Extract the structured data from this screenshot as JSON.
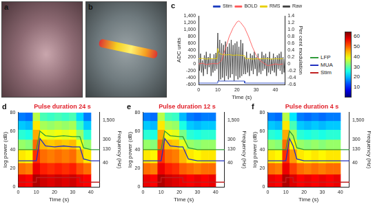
{
  "panels": [
    {
      "label": "a",
      "type": "image"
    },
    {
      "label": "b",
      "type": "image"
    }
  ],
  "colorbar": {
    "range": [
      0,
      65
    ],
    "ticks": [
      10,
      20,
      30,
      40,
      50,
      60
    ]
  },
  "chart_data": [
    {
      "label": "c",
      "type": "line",
      "x_label": "Time (s)",
      "y_label": "ADC units",
      "y2_label": "Per cent modulation",
      "xlim": [
        0,
        45
      ],
      "xticks": [
        0,
        10,
        20,
        30,
        40
      ],
      "ylim": [
        -600,
        1400
      ],
      "yticks": [
        -600,
        -400,
        -200,
        0,
        200,
        400,
        600,
        800,
        {
          "value": 1000,
          "label": "1,000"
        },
        {
          "value": 1200,
          "label": "1,200"
        },
        {
          "value": 1400,
          "label": "1,400"
        }
      ],
      "y2lim": [
        -0.6,
        1.4
      ],
      "y2ticks": [
        -0.6,
        -0.4,
        -0.2,
        0,
        0.2,
        0.4,
        0.6,
        0.8,
        {
          "value": 1,
          "label": "1.0"
        },
        1.2,
        1.4
      ],
      "grid": false,
      "legend": "top",
      "series": [
        {
          "name": "Raw",
          "color": "#444444",
          "x": [
            0,
            0.5,
            1,
            1.5,
            2,
            2.5,
            3,
            3.5,
            4,
            4.5,
            5,
            5.5,
            6,
            6.5,
            7,
            7.5,
            8,
            8.5,
            9,
            9.5,
            10,
            10.5,
            11,
            11.5,
            12,
            12.5,
            13,
            13.5,
            14,
            14.5,
            15,
            15.5,
            16,
            16.5,
            17,
            17.5,
            18,
            18.5,
            19,
            19.5,
            20,
            20.5,
            21,
            21.5,
            22,
            22.5,
            23,
            23.5,
            24,
            24.5,
            25,
            25.5,
            26,
            26.5,
            27,
            27.5,
            28,
            28.5,
            29,
            29.5,
            30,
            30.5,
            31,
            31.5,
            32,
            32.5,
            33,
            33.5,
            34,
            34.5,
            35,
            35.5,
            36,
            36.5,
            37,
            37.5,
            38,
            38.5,
            39,
            39.5,
            40,
            40.5,
            41,
            41.5,
            42,
            42.5,
            43,
            43.5,
            44,
            44.5,
            45
          ],
          "values": [
            150,
            -200,
            300,
            -250,
            100,
            -350,
            250,
            -150,
            350,
            -300,
            200,
            -100,
            300,
            -350,
            150,
            -250,
            280,
            -200,
            320,
            -150,
            900,
            -500,
            700,
            -450,
            600,
            -400,
            550,
            -500,
            650,
            -350,
            500,
            -450,
            600,
            -400,
            700,
            -300,
            550,
            -500,
            600,
            -350,
            650,
            -450,
            500,
            -400,
            700,
            -350,
            600,
            -300,
            200,
            -300,
            350,
            -250,
            150,
            -350,
            300,
            -200,
            250,
            -300,
            350,
            -150,
            200,
            -350,
            300,
            -250,
            150,
            -300,
            350,
            -200,
            250,
            -150,
            300,
            -350,
            200,
            -250,
            350,
            -300,
            150,
            -200,
            300,
            -250,
            200,
            -350,
            250,
            -150,
            300,
            -200,
            350,
            -300,
            200,
            -250,
            150
          ]
        },
        {
          "name": "RMS",
          "color": "#e8d000",
          "x": [
            0,
            2,
            4,
            6,
            8,
            9.5,
            10,
            10.5,
            11,
            12,
            14,
            16,
            18,
            20,
            22,
            24,
            24.5,
            26,
            28,
            30,
            32,
            34,
            36,
            38,
            40,
            42,
            44
          ],
          "values": [
            150,
            160,
            140,
            150,
            155,
            150,
            450,
            350,
            300,
            280,
            260,
            270,
            250,
            260,
            250,
            240,
            150,
            160,
            140,
            150,
            145,
            155,
            150,
            140,
            150,
            145,
            150
          ]
        },
        {
          "name": "BOLD",
          "color": "#ff5a5a",
          "axis": "y2",
          "x": [
            0,
            2,
            4,
            6,
            8,
            10,
            12,
            14,
            16,
            18,
            20,
            21,
            22,
            24,
            26,
            28,
            30,
            32,
            34,
            36,
            38,
            40,
            42,
            44
          ],
          "values": [
            0,
            0.02,
            -0.02,
            0,
            0.01,
            0,
            0.1,
            0.45,
            0.8,
            1.05,
            1.22,
            1.25,
            1.2,
            1.05,
            0.8,
            0.5,
            0.25,
            0.1,
            0.02,
            -0.05,
            -0.03,
            0,
            -0.02,
            0
          ]
        },
        {
          "name": "Stim",
          "color": "#1f3fbf",
          "x": [
            0,
            10,
            10,
            24,
            24,
            45
          ],
          "values": [
            -560,
            -560,
            -500,
            -500,
            -560,
            -560
          ]
        }
      ]
    },
    {
      "label": "d",
      "type": "heatmap",
      "title": "Pulse duration 24 s",
      "x_label": "Time (s)",
      "y_label": "Frequency (Hz)",
      "y2_label": "log power (dB)",
      "xlim": [
        0,
        45
      ],
      "xticks": [
        0,
        10,
        20,
        30,
        40
      ],
      "log": "y",
      "ylim": [
        5,
        3000
      ],
      "yticks": [
        40,
        130,
        300,
        {
          "value": 1500,
          "label": "1,500"
        }
      ],
      "y2lim": [
        0,
        80
      ],
      "y2ticks": [
        0,
        20,
        40,
        60,
        80
      ],
      "grid": false,
      "cells": {
        "time_edges": [
          0,
          4,
          8,
          12,
          16,
          20,
          24,
          28,
          32,
          36,
          40
        ],
        "freq_edges": [
          5,
          15,
          40,
          130,
          300,
          700,
          1500,
          3000
        ],
        "values": [
          [
            58,
            57,
            62,
            60,
            59,
            60,
            59,
            60,
            58,
            57
          ],
          [
            50,
            49,
            58,
            55,
            54,
            55,
            54,
            55,
            52,
            50
          ],
          [
            42,
            41,
            54,
            50,
            49,
            50,
            49,
            50,
            46,
            42
          ],
          [
            34,
            33,
            50,
            45,
            44,
            45,
            44,
            45,
            40,
            34
          ],
          [
            27,
            26,
            46,
            40,
            39,
            40,
            39,
            40,
            34,
            27
          ],
          [
            21,
            20,
            42,
            35,
            34,
            35,
            34,
            35,
            28,
            21
          ],
          [
            16,
            15,
            36,
            29,
            28,
            29,
            28,
            29,
            22,
            16
          ]
        ]
      },
      "series": [
        {
          "name": "LFP",
          "color": "#2e9b3a",
          "axis": "y2",
          "x": [
            0,
            5,
            10,
            12,
            15,
            20,
            25,
            30,
            34,
            36,
            40,
            45
          ],
          "values": [
            40,
            40,
            40,
            60,
            55,
            54,
            55,
            54,
            54,
            42,
            40,
            40
          ]
        },
        {
          "name": "MUA",
          "color": "#2030c0",
          "axis": "y2",
          "x": [
            0,
            5,
            10,
            12,
            15,
            20,
            25,
            30,
            34,
            36,
            40,
            45
          ],
          "values": [
            28,
            28,
            28,
            52,
            44,
            43,
            44,
            43,
            43,
            30,
            28,
            28
          ]
        },
        {
          "name": "Stim",
          "color": "#c02020",
          "axis": "y2",
          "x": [
            0,
            10,
            10,
            34,
            34,
            45
          ],
          "values": [
            5,
            5,
            10,
            10,
            5,
            5
          ]
        }
      ]
    },
    {
      "label": "e",
      "type": "heatmap",
      "title": "Pulse duration 12 s",
      "x_label": "Time (s)",
      "y_label": "Frequency (Hz)",
      "y2_label": "log power (dB)",
      "xlim": [
        0,
        45
      ],
      "xticks": [
        0,
        10,
        20,
        30,
        40
      ],
      "log": "y",
      "ylim": [
        5,
        3000
      ],
      "yticks": [
        40,
        130,
        300,
        {
          "value": 1500,
          "label": "1,500"
        }
      ],
      "y2lim": [
        0,
        80
      ],
      "y2ticks": [
        0,
        20,
        40,
        60,
        80
      ],
      "grid": false,
      "cells": {
        "time_edges": [
          0,
          4,
          8,
          12,
          16,
          20,
          24,
          28,
          32,
          36,
          40
        ],
        "freq_edges": [
          5,
          15,
          40,
          130,
          300,
          700,
          1500,
          3000
        ],
        "values": [
          [
            58,
            57,
            62,
            60,
            59,
            58,
            57,
            58,
            57,
            58
          ],
          [
            50,
            49,
            58,
            55,
            54,
            51,
            50,
            49,
            50,
            50
          ],
          [
            42,
            41,
            54,
            50,
            49,
            45,
            42,
            41,
            42,
            42
          ],
          [
            34,
            33,
            50,
            45,
            44,
            39,
            34,
            33,
            34,
            34
          ],
          [
            27,
            26,
            46,
            40,
            39,
            32,
            27,
            26,
            27,
            27
          ],
          [
            21,
            20,
            42,
            35,
            34,
            26,
            21,
            20,
            21,
            21
          ],
          [
            16,
            15,
            36,
            29,
            28,
            20,
            16,
            15,
            16,
            16
          ]
        ]
      },
      "series": [
        {
          "name": "LFP",
          "color": "#2e9b3a",
          "axis": "y2",
          "x": [
            0,
            5,
            10,
            12,
            15,
            20,
            22,
            25,
            30,
            35,
            40,
            45
          ],
          "values": [
            40,
            40,
            40,
            60,
            55,
            54,
            54,
            42,
            40,
            40,
            40,
            40
          ]
        },
        {
          "name": "MUA",
          "color": "#2030c0",
          "axis": "y2",
          "x": [
            0,
            5,
            10,
            12,
            15,
            20,
            22,
            25,
            30,
            35,
            40,
            45
          ],
          "values": [
            28,
            28,
            28,
            52,
            44,
            43,
            43,
            30,
            28,
            28,
            28,
            28
          ]
        },
        {
          "name": "Stim",
          "color": "#c02020",
          "axis": "y2",
          "x": [
            0,
            10,
            10,
            22,
            22,
            45
          ],
          "values": [
            5,
            5,
            10,
            10,
            5,
            5
          ]
        }
      ]
    },
    {
      "label": "f",
      "type": "heatmap",
      "title": "Pulse duration 4 s",
      "x_label": "Time (s)",
      "y_label": "Frequency (Hz)",
      "y2_label": "log power (dB)",
      "xlim": [
        0,
        45
      ],
      "xticks": [
        0,
        10,
        20,
        30,
        40
      ],
      "log": "y",
      "ylim": [
        5,
        3000
      ],
      "yticks": [
        40,
        130,
        300,
        {
          "value": 1500,
          "label": "1,500"
        }
      ],
      "y2lim": [
        0,
        80
      ],
      "y2ticks": [
        0,
        20,
        40,
        60,
        80
      ],
      "grid": false,
      "cells": {
        "time_edges": [
          0,
          4,
          8,
          12,
          16,
          20,
          24,
          28,
          32,
          36,
          40
        ],
        "freq_edges": [
          5,
          15,
          40,
          130,
          300,
          700,
          1500,
          3000
        ],
        "values": [
          [
            58,
            57,
            62,
            59,
            57,
            58,
            57,
            58,
            57,
            58
          ],
          [
            50,
            49,
            58,
            53,
            50,
            49,
            50,
            49,
            50,
            50
          ],
          [
            42,
            41,
            54,
            47,
            42,
            41,
            42,
            41,
            42,
            42
          ],
          [
            34,
            33,
            50,
            41,
            34,
            33,
            34,
            33,
            34,
            34
          ],
          [
            27,
            26,
            46,
            35,
            27,
            26,
            27,
            26,
            27,
            27
          ],
          [
            21,
            20,
            42,
            29,
            21,
            20,
            21,
            20,
            21,
            21
          ],
          [
            16,
            15,
            36,
            23,
            16,
            15,
            16,
            15,
            16,
            16
          ]
        ]
      },
      "series": [
        {
          "name": "LFP",
          "color": "#2e9b3a",
          "axis": "y2",
          "x": [
            0,
            5,
            10,
            12,
            14,
            16,
            20,
            25,
            30,
            35,
            40,
            45
          ],
          "values": [
            40,
            40,
            40,
            60,
            55,
            42,
            40,
            40,
            40,
            40,
            40,
            40
          ]
        },
        {
          "name": "MUA",
          "color": "#2030c0",
          "axis": "y2",
          "x": [
            0,
            5,
            10,
            12,
            14,
            16,
            20,
            25,
            30,
            35,
            40,
            45
          ],
          "values": [
            28,
            28,
            28,
            52,
            44,
            30,
            28,
            28,
            28,
            28,
            28,
            28
          ]
        },
        {
          "name": "Stim",
          "color": "#c02020",
          "axis": "y2",
          "x": [
            0,
            10,
            10,
            14,
            14,
            45
          ],
          "values": [
            5,
            5,
            10,
            10,
            5,
            5
          ]
        }
      ]
    }
  ]
}
